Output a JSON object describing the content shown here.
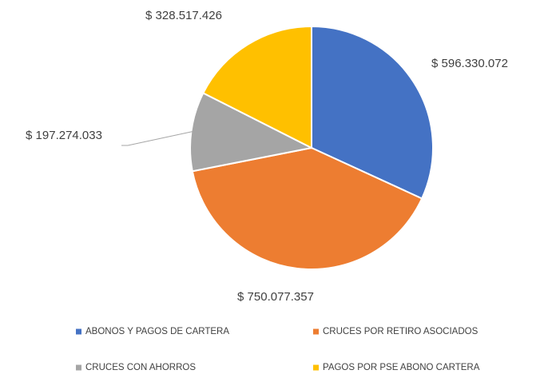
{
  "chart_data": {
    "type": "pie",
    "categories": [
      "ABONOS Y PAGOS DE CARTERA",
      "CRUCES POR RETIRO ASOCIADOS",
      "CRUCES CON AHORROS",
      "PAGOS POR PSE ABONO CARTERA"
    ],
    "values": [
      596330072,
      750077357,
      197274033,
      328517426
    ],
    "value_labels": [
      "$ 596.330.072",
      "$ 750.077.357",
      "$ 197.274.033",
      "$ 328.517.426"
    ],
    "colors": [
      "#4472c4",
      "#ed7d31",
      "#a5a5a5",
      "#ffc000"
    ],
    "legend": "bottom"
  }
}
